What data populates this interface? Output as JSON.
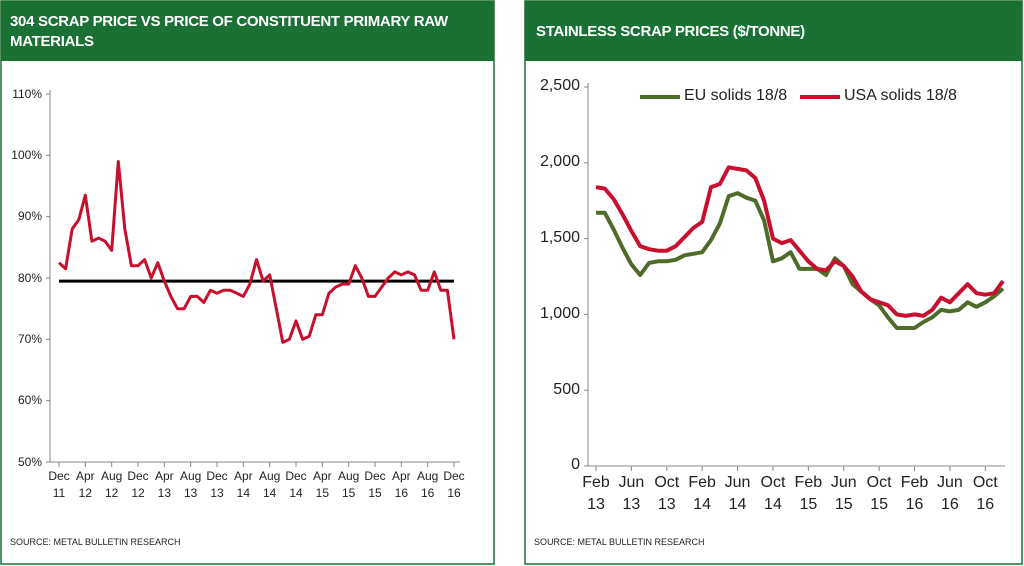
{
  "chart_data": [
    {
      "type": "line",
      "title": "304 SCRAP PRICE VS PRICE OF CONSTITUENT PRIMARY RAW MATERIALS",
      "source": "SOURCE:  METAL BULLETIN RESEARCH",
      "categories": [
        "Dec 11",
        null,
        null,
        null,
        "Apr 12",
        null,
        null,
        null,
        "Aug 12",
        null,
        null,
        null,
        "Dec 12",
        null,
        null,
        null,
        "Apr 13",
        null,
        null,
        null,
        "Aug 13",
        null,
        null,
        null,
        "Dec 13",
        null,
        null,
        null,
        "Apr 14",
        null,
        null,
        null,
        "Aug 14",
        null,
        null,
        null,
        "Dec 14",
        null,
        null,
        null,
        "Apr 15",
        null,
        null,
        null,
        "Aug 15",
        null,
        null,
        null,
        "Dec 15",
        null,
        null,
        null,
        "Apr 16",
        null,
        null,
        null,
        "Aug 16",
        null,
        null,
        null,
        "Dec 16"
      ],
      "values": [
        82.5,
        81.5,
        88,
        89.5,
        93.5,
        86,
        86.5,
        86,
        84.5,
        99,
        88,
        82,
        82,
        83,
        80,
        82.5,
        79.5,
        77,
        75,
        75,
        77,
        77,
        76,
        78,
        77.5,
        78,
        78,
        77.5,
        77,
        79,
        83,
        79.5,
        80.5,
        75,
        69.5,
        70,
        73,
        70,
        70.5,
        74,
        74,
        77.5,
        78.5,
        79,
        79,
        82,
        80,
        77,
        77,
        78.5,
        80,
        81,
        80.5,
        81,
        80.5,
        78,
        78,
        81,
        78,
        78,
        70
      ],
      "color": "#c8102e",
      "reference_line": 79.5,
      "reference_color": "#000000",
      "ylim": [
        50,
        110
      ],
      "yticks": [
        {
          "value": 50,
          "label": "50%"
        },
        {
          "value": 60,
          "label": "60%"
        },
        {
          "value": 70,
          "label": "70%"
        },
        {
          "value": 80,
          "label": "80%"
        },
        {
          "value": 90,
          "label": "90%"
        },
        {
          "value": 100,
          "label": "100%"
        },
        {
          "value": 110,
          "label": "110%"
        }
      ],
      "grid": false
    },
    {
      "type": "line",
      "title": "STAINLESS SCRAP PRICES ($/TONNE)",
      "source": "SOURCE:  METAL BULLETIN RESEARCH",
      "categories": [
        "Feb 13",
        null,
        null,
        null,
        "Jun 13",
        null,
        null,
        null,
        "Oct 13",
        null,
        null,
        null,
        "Feb 14",
        null,
        null,
        null,
        "Jun 14",
        null,
        null,
        null,
        "Oct 14",
        null,
        null,
        null,
        "Feb 15",
        null,
        null,
        null,
        "Jun 15",
        null,
        null,
        null,
        "Oct 15",
        null,
        null,
        null,
        "Feb 16",
        null,
        null,
        null,
        "Jun 16",
        null,
        null,
        null,
        "Oct 16",
        null,
        null
      ],
      "series": [
        {
          "name": "EU solids 18/8",
          "color": "#4f6b2a",
          "values": [
            1670,
            1670,
            1560,
            1440,
            1330,
            1260,
            1340,
            1350,
            1350,
            1360,
            1390,
            1400,
            1410,
            1490,
            1600,
            1780,
            1800,
            1770,
            1750,
            1620,
            1350,
            1370,
            1410,
            1300,
            1300,
            1300,
            1260,
            1370,
            1320,
            1200,
            1150,
            1100,
            1060,
            980,
            910,
            910,
            910,
            950,
            980,
            1030,
            1020,
            1030,
            1080,
            1050,
            1080,
            1120,
            1170
          ]
        },
        {
          "name": "USA solids 18/8",
          "color": "#c8102e",
          "values": [
            1840,
            1830,
            1760,
            1660,
            1550,
            1450,
            1430,
            1420,
            1420,
            1450,
            1510,
            1570,
            1610,
            1840,
            1860,
            1970,
            1960,
            1950,
            1900,
            1750,
            1500,
            1470,
            1490,
            1420,
            1350,
            1300,
            1290,
            1350,
            1320,
            1250,
            1150,
            1100,
            1080,
            1060,
            1000,
            990,
            1000,
            990,
            1030,
            1110,
            1080,
            1140,
            1200,
            1140,
            1130,
            1140,
            1220
          ]
        }
      ],
      "ylim": [
        0,
        2500
      ],
      "yticks": [
        0,
        500,
        {
          "value": 1000,
          "label": "1,000"
        },
        {
          "value": 1500,
          "label": "1,500"
        },
        {
          "value": 2000,
          "label": "2,000"
        },
        {
          "value": 2500,
          "label": "2,500"
        }
      ],
      "legend": "top",
      "grid": false
    }
  ]
}
